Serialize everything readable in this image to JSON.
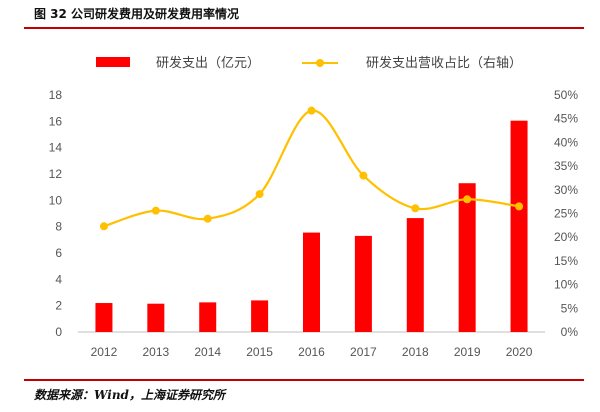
{
  "figure": {
    "title": "图  32 公司研发费用及研发费用率情况",
    "source": "数据来源：Wind，上海证券研究所"
  },
  "chart_data": {
    "type": "bar",
    "categories": [
      "2012",
      "2013",
      "2014",
      "2015",
      "2016",
      "2017",
      "2018",
      "2019",
      "2020"
    ],
    "series": [
      {
        "name": "研发支出（亿元）",
        "type": "bar",
        "axis": "left",
        "color": "#ff0000",
        "values": [
          2.2,
          2.15,
          2.25,
          2.4,
          7.55,
          7.3,
          8.65,
          11.3,
          16.05
        ]
      },
      {
        "name": "研发支出营收占比（右轴）",
        "type": "line",
        "axis": "right",
        "color": "#ffc000",
        "smooth": true,
        "values": [
          22.3,
          25.6,
          23.9,
          29.1,
          46.7,
          33.0,
          26.1,
          28.0,
          26.5
        ]
      }
    ],
    "y_left": {
      "min": 0,
      "max": 18,
      "ticks": [
        "0",
        "2",
        "4",
        "6",
        "8",
        "10",
        "12",
        "14",
        "16",
        "18"
      ]
    },
    "y_right": {
      "min": 0,
      "max": 50,
      "ticks": [
        "0%",
        "5%",
        "10%",
        "15%",
        "20%",
        "25%",
        "30%",
        "35%",
        "40%",
        "45%",
        "50%"
      ]
    },
    "grid": false,
    "legend": "top"
  }
}
